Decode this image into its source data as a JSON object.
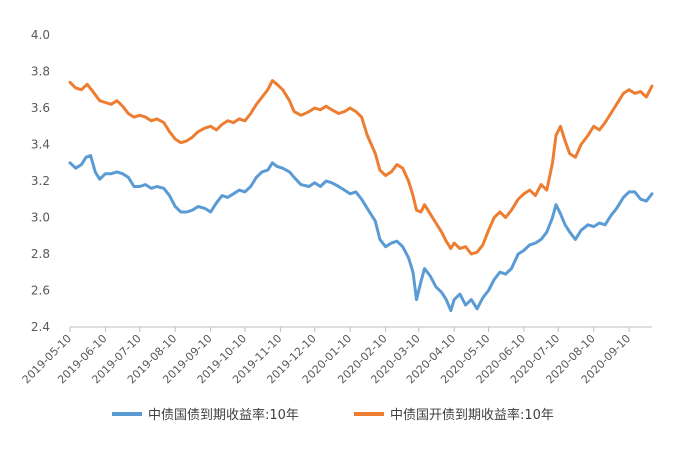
{
  "chart_data": {
    "type": "line",
    "title": "",
    "xlabel": "",
    "ylabel": "",
    "ylim": [
      2.4,
      4.0
    ],
    "y_ticks": [
      "4.0",
      "3.8",
      "3.6",
      "3.4",
      "3.2",
      "3.0",
      "2.8",
      "2.6",
      "2.4"
    ],
    "x_ticks": [
      "2019-05-10",
      "2019-06-10",
      "2019-07-10",
      "2019-08-10",
      "2019-09-10",
      "2019-10-10",
      "2019-11-10",
      "2019-12-10",
      "2020-01-10",
      "2020-02-10",
      "2020-03-10",
      "2020-04-10",
      "2020-05-10",
      "2020-06-10",
      "2020-07-10",
      "2020-08-10",
      "2020-09-10"
    ],
    "x_range": [
      "2019-05-10",
      "2020-09-30"
    ],
    "grid": false,
    "legend_position": "bottom",
    "series": [
      {
        "name": "中债国债到期收益率:10年",
        "color": "#5B9BD5",
        "points": [
          [
            "2019-05-10",
            3.3
          ],
          [
            "2019-05-15",
            3.27
          ],
          [
            "2019-05-20",
            3.29
          ],
          [
            "2019-05-24",
            3.33
          ],
          [
            "2019-05-28",
            3.34
          ],
          [
            "2019-06-01",
            3.25
          ],
          [
            "2019-06-05",
            3.21
          ],
          [
            "2019-06-10",
            3.24
          ],
          [
            "2019-06-15",
            3.24
          ],
          [
            "2019-06-20",
            3.25
          ],
          [
            "2019-06-25",
            3.24
          ],
          [
            "2019-06-30",
            3.22
          ],
          [
            "2019-07-05",
            3.17
          ],
          [
            "2019-07-10",
            3.17
          ],
          [
            "2019-07-15",
            3.18
          ],
          [
            "2019-07-20",
            3.16
          ],
          [
            "2019-07-25",
            3.17
          ],
          [
            "2019-07-31",
            3.16
          ],
          [
            "2019-08-05",
            3.12
          ],
          [
            "2019-08-10",
            3.06
          ],
          [
            "2019-08-15",
            3.03
          ],
          [
            "2019-08-20",
            3.03
          ],
          [
            "2019-08-25",
            3.04
          ],
          [
            "2019-08-30",
            3.06
          ],
          [
            "2019-09-05",
            3.05
          ],
          [
            "2019-09-10",
            3.03
          ],
          [
            "2019-09-15",
            3.08
          ],
          [
            "2019-09-20",
            3.12
          ],
          [
            "2019-09-25",
            3.11
          ],
          [
            "2019-09-30",
            3.13
          ],
          [
            "2019-10-05",
            3.15
          ],
          [
            "2019-10-10",
            3.14
          ],
          [
            "2019-10-15",
            3.17
          ],
          [
            "2019-10-20",
            3.22
          ],
          [
            "2019-10-25",
            3.25
          ],
          [
            "2019-10-30",
            3.26
          ],
          [
            "2019-11-03",
            3.3
          ],
          [
            "2019-11-07",
            3.28
          ],
          [
            "2019-11-12",
            3.27
          ],
          [
            "2019-11-18",
            3.25
          ],
          [
            "2019-11-22",
            3.22
          ],
          [
            "2019-11-28",
            3.18
          ],
          [
            "2019-12-05",
            3.17
          ],
          [
            "2019-12-10",
            3.19
          ],
          [
            "2019-12-15",
            3.17
          ],
          [
            "2019-12-20",
            3.2
          ],
          [
            "2019-12-25",
            3.19
          ],
          [
            "2019-12-31",
            3.17
          ],
          [
            "2020-01-05",
            3.15
          ],
          [
            "2020-01-10",
            3.13
          ],
          [
            "2020-01-15",
            3.14
          ],
          [
            "2020-01-20",
            3.1
          ],
          [
            "2020-01-25",
            3.05
          ],
          [
            "2020-02-01",
            2.98
          ],
          [
            "2020-02-05",
            2.88
          ],
          [
            "2020-02-10",
            2.84
          ],
          [
            "2020-02-15",
            2.86
          ],
          [
            "2020-02-20",
            2.87
          ],
          [
            "2020-02-25",
            2.84
          ],
          [
            "2020-03-01",
            2.78
          ],
          [
            "2020-03-05",
            2.7
          ],
          [
            "2020-03-08",
            2.55
          ],
          [
            "2020-03-12",
            2.65
          ],
          [
            "2020-03-15",
            2.72
          ],
          [
            "2020-03-20",
            2.68
          ],
          [
            "2020-03-25",
            2.62
          ],
          [
            "2020-03-30",
            2.59
          ],
          [
            "2020-04-03",
            2.55
          ],
          [
            "2020-04-07",
            2.49
          ],
          [
            "2020-04-10",
            2.55
          ],
          [
            "2020-04-15",
            2.58
          ],
          [
            "2020-04-20",
            2.52
          ],
          [
            "2020-04-25",
            2.55
          ],
          [
            "2020-04-30",
            2.5
          ],
          [
            "2020-05-05",
            2.56
          ],
          [
            "2020-05-10",
            2.6
          ],
          [
            "2020-05-15",
            2.66
          ],
          [
            "2020-05-20",
            2.7
          ],
          [
            "2020-05-25",
            2.69
          ],
          [
            "2020-05-30",
            2.72
          ],
          [
            "2020-06-05",
            2.8
          ],
          [
            "2020-06-10",
            2.82
          ],
          [
            "2020-06-15",
            2.85
          ],
          [
            "2020-06-20",
            2.86
          ],
          [
            "2020-06-25",
            2.88
          ],
          [
            "2020-06-30",
            2.92
          ],
          [
            "2020-07-05",
            3.0
          ],
          [
            "2020-07-08",
            3.07
          ],
          [
            "2020-07-12",
            3.02
          ],
          [
            "2020-07-16",
            2.96
          ],
          [
            "2020-07-20",
            2.92
          ],
          [
            "2020-07-25",
            2.88
          ],
          [
            "2020-07-30",
            2.93
          ],
          [
            "2020-08-05",
            2.96
          ],
          [
            "2020-08-10",
            2.95
          ],
          [
            "2020-08-15",
            2.97
          ],
          [
            "2020-08-20",
            2.96
          ],
          [
            "2020-08-25",
            3.01
          ],
          [
            "2020-08-30",
            3.05
          ],
          [
            "2020-09-05",
            3.11
          ],
          [
            "2020-09-10",
            3.14
          ],
          [
            "2020-09-15",
            3.14
          ],
          [
            "2020-09-20",
            3.1
          ],
          [
            "2020-09-25",
            3.09
          ],
          [
            "2020-09-30",
            3.13
          ]
        ]
      },
      {
        "name": "中债国开债到期收益率:10年",
        "color": "#ED7D31",
        "points": [
          [
            "2019-05-10",
            3.74
          ],
          [
            "2019-05-15",
            3.71
          ],
          [
            "2019-05-20",
            3.7
          ],
          [
            "2019-05-25",
            3.73
          ],
          [
            "2019-05-30",
            3.69
          ],
          [
            "2019-06-05",
            3.64
          ],
          [
            "2019-06-10",
            3.63
          ],
          [
            "2019-06-15",
            3.62
          ],
          [
            "2019-06-20",
            3.64
          ],
          [
            "2019-06-25",
            3.61
          ],
          [
            "2019-06-30",
            3.57
          ],
          [
            "2019-07-05",
            3.55
          ],
          [
            "2019-07-10",
            3.56
          ],
          [
            "2019-07-15",
            3.55
          ],
          [
            "2019-07-20",
            3.53
          ],
          [
            "2019-07-25",
            3.54
          ],
          [
            "2019-07-31",
            3.52
          ],
          [
            "2019-08-05",
            3.47
          ],
          [
            "2019-08-10",
            3.43
          ],
          [
            "2019-08-15",
            3.41
          ],
          [
            "2019-08-20",
            3.42
          ],
          [
            "2019-08-25",
            3.44
          ],
          [
            "2019-08-30",
            3.47
          ],
          [
            "2019-09-05",
            3.49
          ],
          [
            "2019-09-10",
            3.5
          ],
          [
            "2019-09-15",
            3.48
          ],
          [
            "2019-09-20",
            3.51
          ],
          [
            "2019-09-25",
            3.53
          ],
          [
            "2019-09-30",
            3.52
          ],
          [
            "2019-10-05",
            3.54
          ],
          [
            "2019-10-10",
            3.53
          ],
          [
            "2019-10-15",
            3.57
          ],
          [
            "2019-10-20",
            3.62
          ],
          [
            "2019-10-25",
            3.66
          ],
          [
            "2019-10-30",
            3.7
          ],
          [
            "2019-11-03",
            3.75
          ],
          [
            "2019-11-07",
            3.73
          ],
          [
            "2019-11-12",
            3.7
          ],
          [
            "2019-11-18",
            3.64
          ],
          [
            "2019-11-22",
            3.58
          ],
          [
            "2019-11-28",
            3.56
          ],
          [
            "2019-12-05",
            3.58
          ],
          [
            "2019-12-10",
            3.6
          ],
          [
            "2019-12-15",
            3.59
          ],
          [
            "2019-12-20",
            3.61
          ],
          [
            "2019-12-25",
            3.59
          ],
          [
            "2019-12-31",
            3.57
          ],
          [
            "2020-01-05",
            3.58
          ],
          [
            "2020-01-10",
            3.6
          ],
          [
            "2020-01-15",
            3.58
          ],
          [
            "2020-01-20",
            3.55
          ],
          [
            "2020-01-25",
            3.45
          ],
          [
            "2020-02-01",
            3.35
          ],
          [
            "2020-02-05",
            3.26
          ],
          [
            "2020-02-10",
            3.23
          ],
          [
            "2020-02-15",
            3.25
          ],
          [
            "2020-02-20",
            3.29
          ],
          [
            "2020-02-25",
            3.27
          ],
          [
            "2020-03-01",
            3.2
          ],
          [
            "2020-03-05",
            3.12
          ],
          [
            "2020-03-08",
            3.04
          ],
          [
            "2020-03-12",
            3.03
          ],
          [
            "2020-03-15",
            3.07
          ],
          [
            "2020-03-20",
            3.02
          ],
          [
            "2020-03-25",
            2.97
          ],
          [
            "2020-03-30",
            2.92
          ],
          [
            "2020-04-03",
            2.87
          ],
          [
            "2020-04-07",
            2.83
          ],
          [
            "2020-04-10",
            2.86
          ],
          [
            "2020-04-15",
            2.83
          ],
          [
            "2020-04-20",
            2.84
          ],
          [
            "2020-04-25",
            2.8
          ],
          [
            "2020-04-30",
            2.81
          ],
          [
            "2020-05-05",
            2.85
          ],
          [
            "2020-05-10",
            2.93
          ],
          [
            "2020-05-15",
            3.0
          ],
          [
            "2020-05-20",
            3.03
          ],
          [
            "2020-05-25",
            3.0
          ],
          [
            "2020-05-30",
            3.04
          ],
          [
            "2020-06-05",
            3.1
          ],
          [
            "2020-06-10",
            3.13
          ],
          [
            "2020-06-15",
            3.15
          ],
          [
            "2020-06-20",
            3.12
          ],
          [
            "2020-06-25",
            3.18
          ],
          [
            "2020-06-30",
            3.15
          ],
          [
            "2020-07-05",
            3.3
          ],
          [
            "2020-07-08",
            3.45
          ],
          [
            "2020-07-12",
            3.5
          ],
          [
            "2020-07-16",
            3.42
          ],
          [
            "2020-07-20",
            3.35
          ],
          [
            "2020-07-25",
            3.33
          ],
          [
            "2020-07-30",
            3.4
          ],
          [
            "2020-08-05",
            3.45
          ],
          [
            "2020-08-10",
            3.5
          ],
          [
            "2020-08-15",
            3.48
          ],
          [
            "2020-08-20",
            3.52
          ],
          [
            "2020-08-25",
            3.57
          ],
          [
            "2020-08-30",
            3.62
          ],
          [
            "2020-09-05",
            3.68
          ],
          [
            "2020-09-10",
            3.7
          ],
          [
            "2020-09-15",
            3.68
          ],
          [
            "2020-09-20",
            3.69
          ],
          [
            "2020-09-25",
            3.66
          ],
          [
            "2020-09-30",
            3.72
          ]
        ]
      }
    ]
  }
}
